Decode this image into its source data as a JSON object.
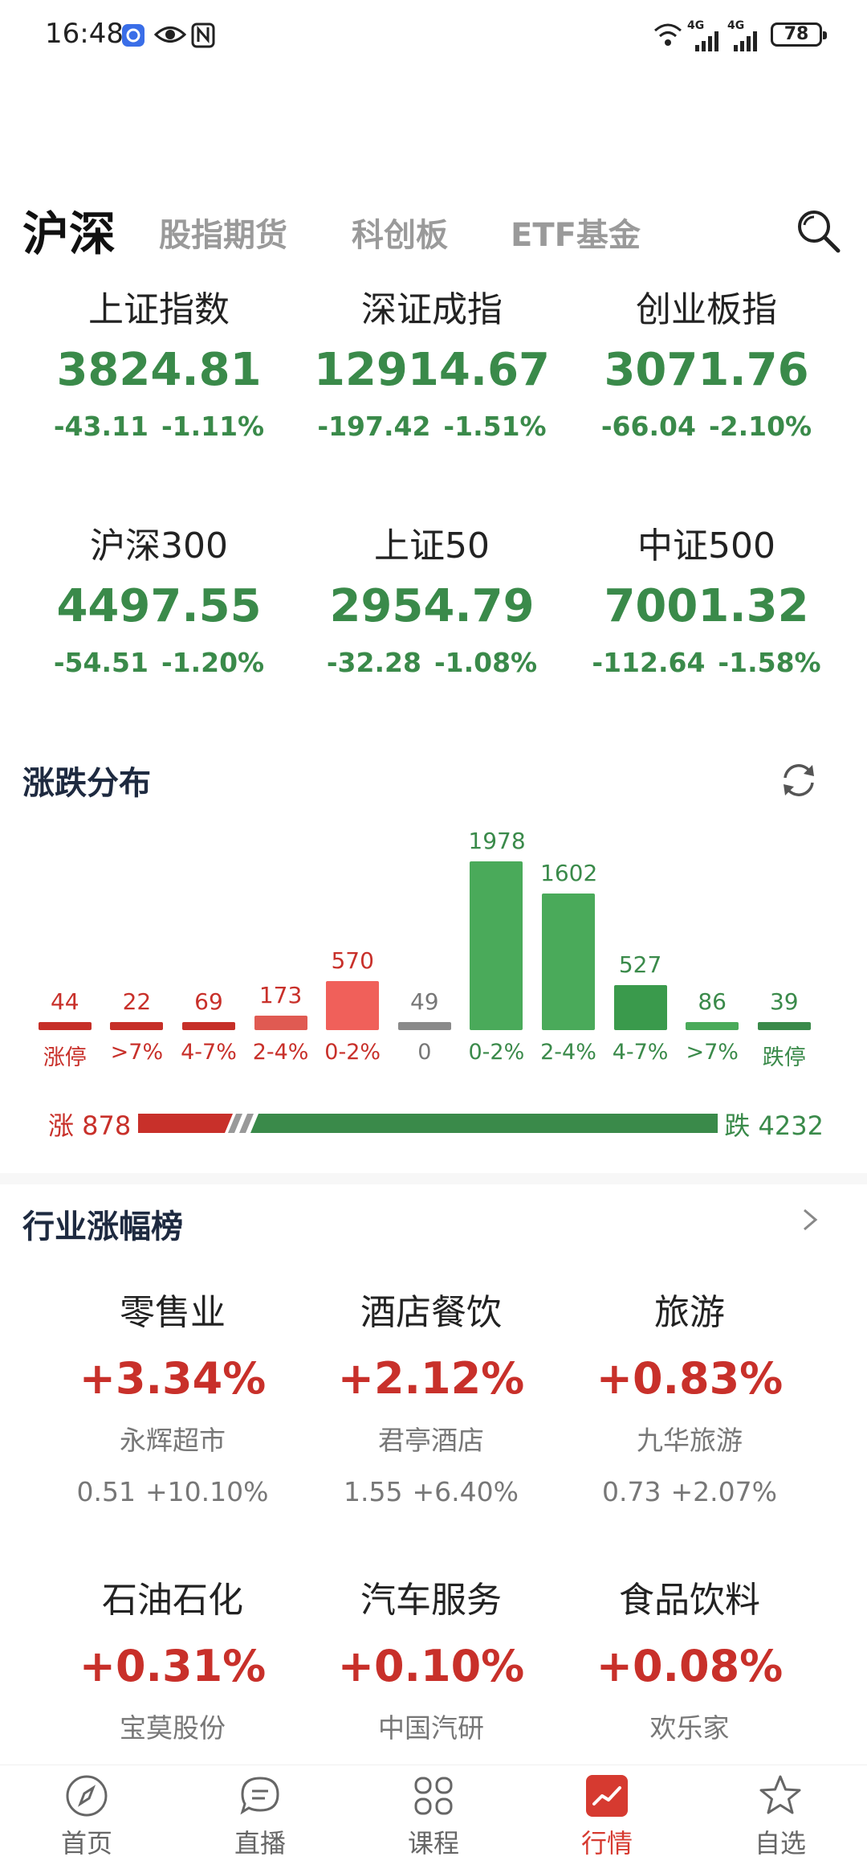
{
  "status_bar": {
    "time": "16:48",
    "battery": "78",
    "sig1": "4G",
    "sig2": "4G"
  },
  "tabs": [
    "沪深",
    "股指期货",
    "科创板",
    "ETF基金"
  ],
  "indices": [
    {
      "name": "上证指数",
      "value": "3824.81",
      "change": "-43.11",
      "pct": "-1.11%"
    },
    {
      "name": "深证成指",
      "value": "12914.67",
      "change": "-197.42",
      "pct": "-1.51%"
    },
    {
      "name": "创业板指",
      "value": "3071.76",
      "change": "-66.04",
      "pct": "-2.10%"
    },
    {
      "name": "沪深300",
      "value": "4497.55",
      "change": "-54.51",
      "pct": "-1.20%"
    },
    {
      "name": "上证50",
      "value": "2954.79",
      "change": "-32.28",
      "pct": "-1.08%"
    },
    {
      "name": "中证500",
      "value": "7001.32",
      "change": "-112.64",
      "pct": "-1.58%"
    }
  ],
  "distribution": {
    "title": "涨跌分布",
    "up_label": "涨 878",
    "down_label": "跌 4232",
    "up_count": 878,
    "down_count": 4232,
    "colors": {
      "up": "#c8302a",
      "down": "#3a8a4a",
      "flat": "#888888"
    }
  },
  "chart_data": {
    "type": "bar",
    "categories": [
      "涨停",
      ">7%",
      "4-7%",
      "2-4%",
      "0-2%",
      "0",
      "0-2%",
      "2-4%",
      "4-7%",
      ">7%",
      "跌停"
    ],
    "values": [
      44,
      22,
      69,
      173,
      570,
      49,
      1978,
      1602,
      527,
      86,
      39
    ],
    "labels": [
      "44",
      "22",
      "69",
      "173",
      "570",
      "49",
      "1978",
      "1602",
      "527",
      "86",
      "39"
    ],
    "bar_colors": [
      "#c62f28",
      "#c62f28",
      "#c62f28",
      "#e05a52",
      "#f0605a",
      "#8a8a8a",
      "#4aaa5a",
      "#4aaa5a",
      "#3a9a4c",
      "#4aaa5a",
      "#3a8a4a"
    ],
    "text_colors": [
      "#c8302a",
      "#c8302a",
      "#c8302a",
      "#c8302a",
      "#c8302a",
      "#777777",
      "#3a8a4a",
      "#3a8a4a",
      "#3a8a4a",
      "#3a8a4a",
      "#3a8a4a"
    ]
  },
  "industry": {
    "title": "行业涨幅榜",
    "items": [
      {
        "name": "零售业",
        "pct": "+3.34%",
        "stock": "永辉超市",
        "price": "0.51",
        "stock_pct": "+10.10%"
      },
      {
        "name": "酒店餐饮",
        "pct": "+2.12%",
        "stock": "君亭酒店",
        "price": "1.55",
        "stock_pct": "+6.40%"
      },
      {
        "name": "旅游",
        "pct": "+0.83%",
        "stock": "九华旅游",
        "price": "0.73",
        "stock_pct": "+2.07%"
      },
      {
        "name": "石油石化",
        "pct": "+0.31%",
        "stock": "宝莫股份"
      },
      {
        "name": "汽车服务",
        "pct": "+0.10%",
        "stock": "中国汽研"
      },
      {
        "name": "食品饮料",
        "pct": "+0.08%",
        "stock": "欢乐家"
      }
    ]
  },
  "nav": [
    {
      "label": "首页",
      "icon": "compass-icon"
    },
    {
      "label": "直播",
      "icon": "chat-icon"
    },
    {
      "label": "课程",
      "icon": "grid-icon"
    },
    {
      "label": "行情",
      "icon": "chart-icon",
      "active": true
    },
    {
      "label": "自选",
      "icon": "star-icon"
    }
  ]
}
